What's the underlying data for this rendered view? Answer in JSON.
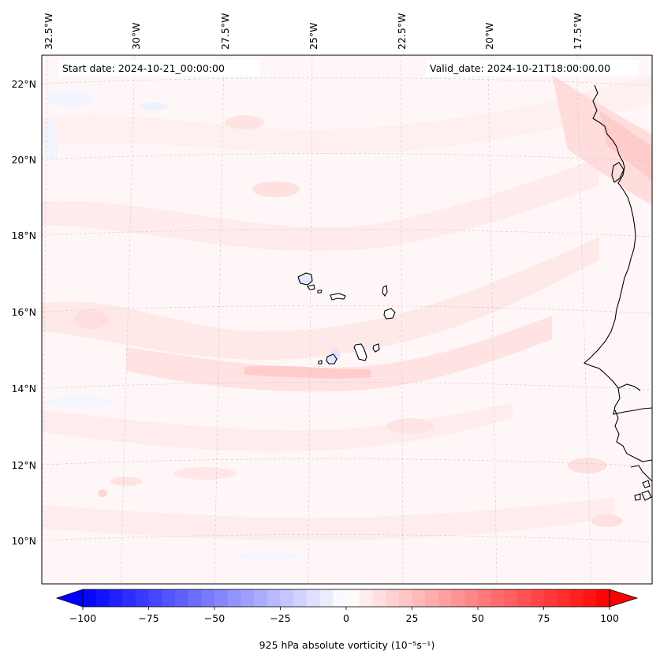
{
  "map": {
    "start_label": "Start date: 2024-10-21_00:00:00",
    "valid_label": "Valid_date: 2024-10-21T18:00:00.00",
    "lon_labels": [
      "32.5°W",
      "30°W",
      "27.5°W",
      "25°W",
      "22.5°W",
      "20°W",
      "17.5°W"
    ],
    "lat_labels": [
      "22°N",
      "20°N",
      "18°N",
      "16°N",
      "14°N",
      "12°N",
      "10°N"
    ],
    "features": [
      "Cabo Verde islands",
      "West African coastline"
    ]
  },
  "colorbar": {
    "title": "925 hPa absolute vorticity (10⁻⁵s⁻¹)",
    "tick_labels": [
      "−100",
      "−75",
      "−50",
      "−25",
      "0",
      "25",
      "50",
      "75",
      "100"
    ],
    "range": [
      -100,
      100
    ],
    "step": 5,
    "colormap": "bwr",
    "low_color": "#0000ff",
    "mid_color": "#ffffff",
    "high_color": "#ff0000"
  }
}
